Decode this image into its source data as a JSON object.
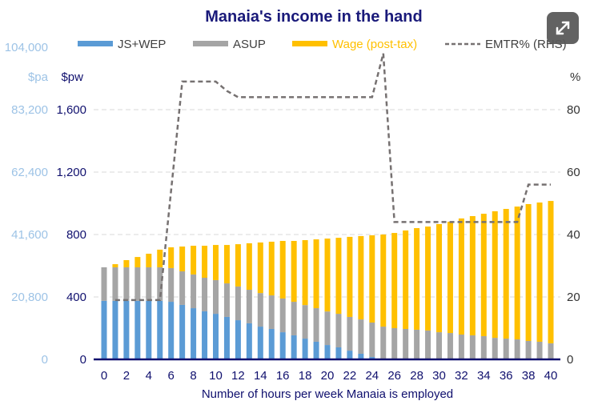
{
  "chart_data": {
    "type": "bar",
    "stacked": true,
    "title": "Manaia's income in the hand",
    "xlabel": "Number of hours per week Manaia is employed",
    "ylabel_left_pa": "$pa",
    "ylabel_left_pw": "$pw",
    "ylabel_right": "%",
    "x": [
      0,
      1,
      2,
      3,
      4,
      5,
      6,
      7,
      8,
      9,
      10,
      11,
      12,
      13,
      14,
      15,
      16,
      17,
      18,
      19,
      20,
      21,
      22,
      23,
      24,
      25,
      26,
      27,
      28,
      29,
      30,
      31,
      32,
      33,
      34,
      35,
      36,
      37,
      38,
      39,
      40
    ],
    "x_tick_labels": [
      "0",
      "2",
      "4",
      "6",
      "8",
      "10",
      "12",
      "14",
      "16",
      "18",
      "20",
      "22",
      "24",
      "26",
      "28",
      "30",
      "32",
      "34",
      "36",
      "38",
      "40"
    ],
    "ylim_left": [
      0,
      2000
    ],
    "ylim_right": [
      0,
      100
    ],
    "y_ticks_pw": [
      "0",
      "400",
      "800",
      "1,200",
      "1,600"
    ],
    "y_ticks_pa": [
      "0",
      "20,800",
      "41,600",
      "62,400",
      "83,200",
      "104,000"
    ],
    "y_ticks_right": [
      "0",
      "20",
      "40",
      "60",
      "80"
    ],
    "grid": true,
    "legend_position": "top",
    "series": [
      {
        "name": "JS+WEP",
        "axis": "left",
        "kind": "bar",
        "color": "#5b9bd5",
        "values": [
          375,
          375,
          375,
          375,
          375,
          375,
          369,
          349,
          328,
          308,
          292,
          272,
          251,
          231,
          210,
          195,
          174,
          154,
          133,
          113,
          92,
          77,
          56,
          36,
          15,
          0,
          0,
          0,
          0,
          0,
          0,
          0,
          0,
          0,
          0,
          0,
          0,
          0,
          0,
          0,
          0
        ]
      },
      {
        "name": "ASUP",
        "axis": "left",
        "kind": "bar",
        "color": "#a5a5a5",
        "values": [
          215,
          215,
          215,
          215,
          215,
          215,
          216,
          215,
          216,
          215,
          216,
          215,
          216,
          215,
          215,
          215,
          216,
          215,
          215,
          215,
          215,
          215,
          216,
          220,
          221,
          210,
          200,
          195,
          190,
          185,
          174,
          169,
          159,
          154,
          149,
          138,
          133,
          128,
          118,
          113,
          103
        ]
      },
      {
        "name": "Wage (post-tax)",
        "axis": "left",
        "kind": "bar",
        "color": "#ffc000",
        "values": [
          0,
          20,
          46,
          66,
          87,
          113,
          133,
          159,
          184,
          205,
          225,
          246,
          271,
          298,
          324,
          344,
          369,
          390,
          416,
          441,
          467,
          487,
          513,
          534,
          559,
          590,
          610,
          631,
          651,
          666,
          693,
          713,
          744,
          764,
          784,
          811,
          831,
          851,
          877,
          892,
          912
        ]
      },
      {
        "name": "EMTR% (RHS)",
        "axis": "right",
        "kind": "line",
        "color": "#767171",
        "values": [
          null,
          19,
          19,
          19,
          19,
          19,
          54,
          89,
          89,
          89,
          89,
          86,
          84,
          84,
          84,
          84,
          84,
          84,
          84,
          84,
          84,
          84,
          84,
          84,
          84,
          98,
          44,
          44,
          44,
          44,
          44,
          44,
          44,
          44,
          44,
          44,
          44,
          44,
          56,
          56,
          56
        ]
      }
    ]
  },
  "ui": {
    "expand_button_icon": "expand-icon"
  }
}
